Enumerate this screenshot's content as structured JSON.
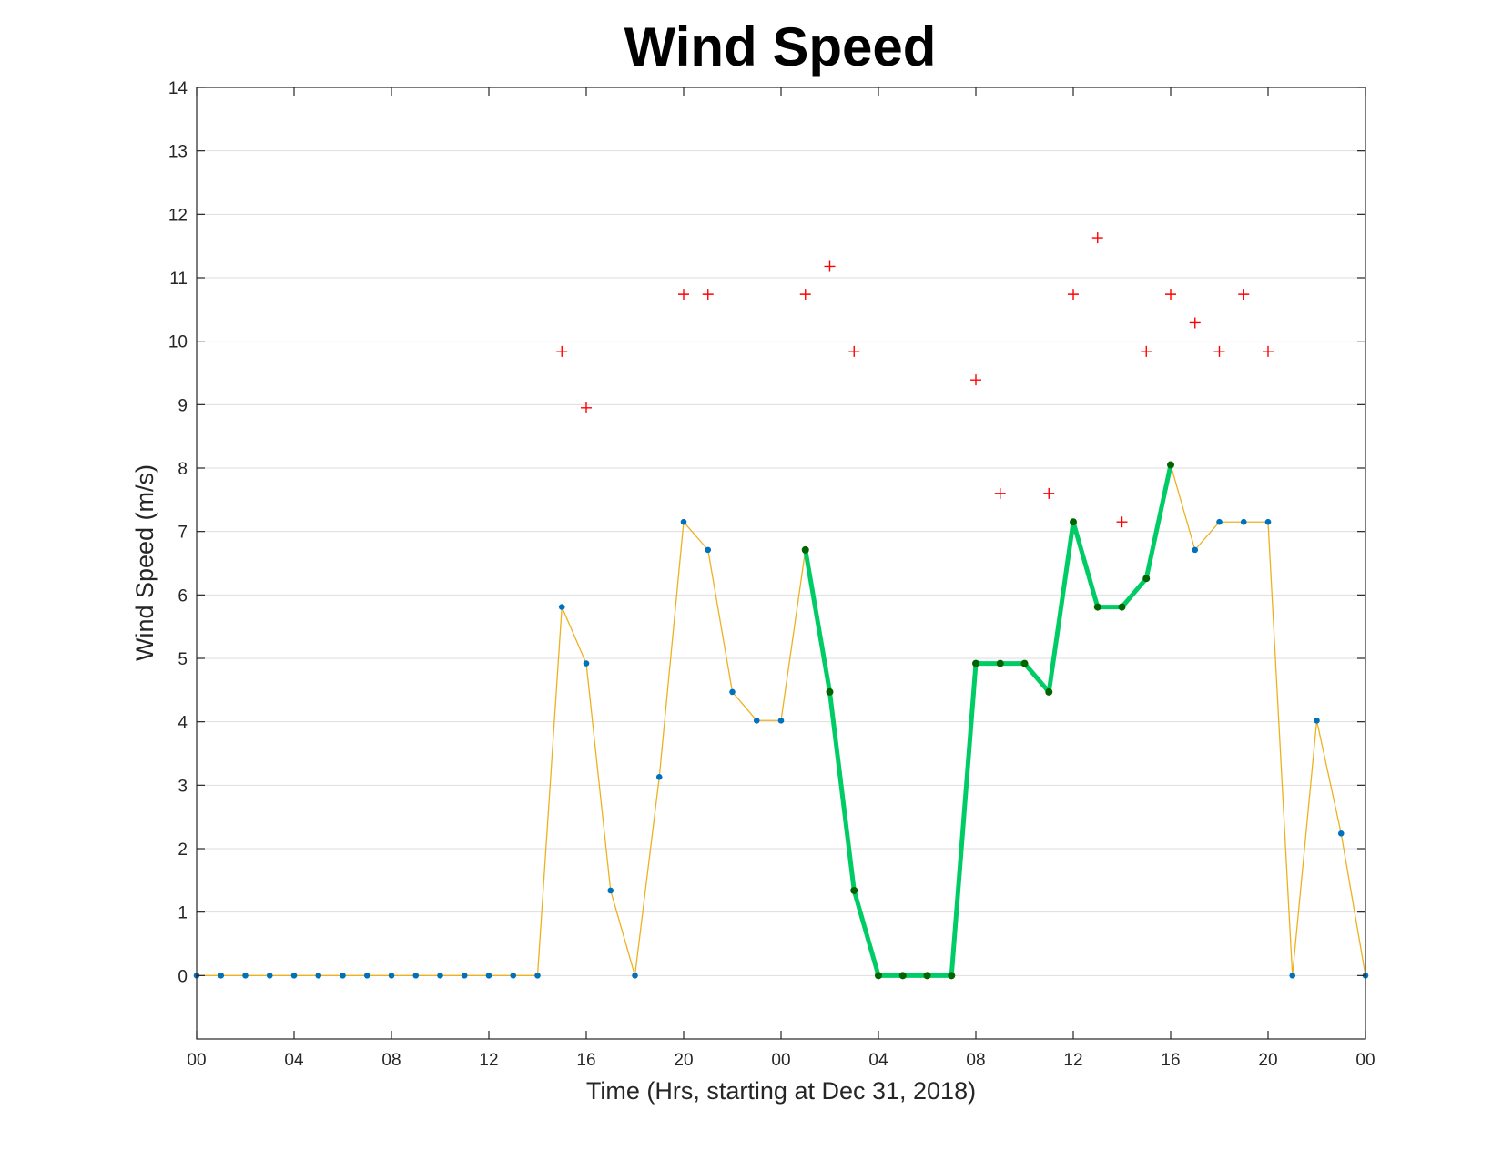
{
  "chart_data": {
    "type": "line",
    "title": "Wind Speed",
    "xlabel": "Time (Hrs, starting at Dec 31, 2018)",
    "ylabel": "Wind Speed (m/s)",
    "ylim": [
      -1,
      14
    ],
    "xlim": [
      0,
      48
    ],
    "y_ticks": [
      0,
      1,
      2,
      3,
      4,
      5,
      6,
      7,
      8,
      9,
      10,
      11,
      12,
      13,
      14
    ],
    "x_ticks": [
      0,
      4,
      8,
      12,
      16,
      20,
      24,
      28,
      32,
      36,
      40,
      44,
      48
    ],
    "x_tick_labels": [
      "00",
      "04",
      "08",
      "12",
      "16",
      "20",
      "00",
      "04",
      "08",
      "12",
      "16",
      "20",
      "00"
    ],
    "grid": "horizontal",
    "colors": {
      "hourly_line": "#EDB120",
      "hourly_marker": "#0072BD",
      "highlight_line": "#00CC66",
      "highlight_marker": "#006400",
      "gust_marker": "#FF0000"
    },
    "series": [
      {
        "marker": "dot",
        "x": [
          0,
          1,
          2,
          3,
          4,
          5,
          6,
          7,
          8,
          9,
          10,
          11,
          12,
          13,
          14,
          15,
          16,
          17,
          18,
          19,
          20,
          21,
          22,
          23,
          24,
          25,
          26,
          27,
          28,
          29,
          30,
          31,
          32,
          33,
          34,
          35,
          36,
          37,
          38,
          39,
          40,
          41,
          42,
          43,
          44,
          45,
          46,
          47,
          48
        ],
        "values": [
          0,
          0,
          0,
          0,
          0,
          0,
          0,
          0,
          0,
          0,
          0,
          0,
          0,
          0,
          0,
          5.81,
          4.92,
          1.34,
          0,
          3.13,
          7.15,
          6.71,
          4.47,
          4.02,
          4.02,
          6.71,
          4.47,
          1.34,
          0,
          0,
          0,
          0,
          4.92,
          4.92,
          4.92,
          4.47,
          7.15,
          5.81,
          5.81,
          6.26,
          8.05,
          6.71,
          7.15,
          7.15,
          7.15,
          0,
          4.02,
          2.24,
          0
        ]
      },
      {
        "marker": "dot",
        "x": [
          25,
          26,
          27,
          28,
          29,
          30,
          31,
          32,
          33,
          34,
          35,
          36,
          37,
          38,
          39,
          40
        ],
        "values": [
          6.71,
          4.47,
          1.34,
          0,
          0,
          0,
          0,
          4.92,
          4.92,
          4.92,
          4.47,
          7.15,
          5.81,
          5.81,
          6.26,
          8.05
        ]
      },
      {
        "marker": "plus",
        "x": [
          15,
          16,
          20,
          21,
          25,
          26,
          27,
          32,
          33,
          35,
          36,
          37,
          38,
          39,
          40,
          41,
          42,
          43,
          44
        ],
        "values": [
          9.84,
          8.95,
          10.74,
          10.74,
          10.74,
          11.18,
          9.84,
          9.39,
          7.6,
          7.6,
          10.74,
          11.63,
          7.15,
          9.84,
          10.74,
          10.29,
          9.84,
          10.74,
          9.84
        ]
      }
    ]
  }
}
